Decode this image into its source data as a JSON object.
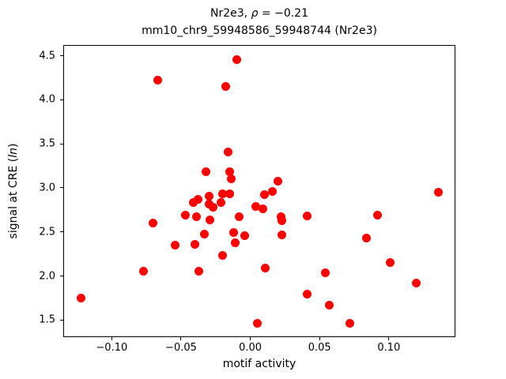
{
  "figure": {
    "background_color": "#ffffff",
    "axis_color": "#000000"
  },
  "title": {
    "line1_prefix": "Nr2e3, ",
    "line1_rho": "ρ",
    "line1_suffix": " = −0.21",
    "line2": "mm10_chr9_59948586_59948744 (Nr2e3)"
  },
  "ylabel_parts": {
    "prefix": "signal at CRE (",
    "italic": "ln",
    "suffix": ")"
  },
  "chart_data": {
    "type": "scatter",
    "title": "Nr2e3, ρ = −0.21",
    "subtitle": "mm10_chr9_59948586_59948744 (Nr2e3)",
    "xlabel": "motif activity",
    "ylabel": "signal at CRE (ln)",
    "xlim": [
      -0.135,
      0.148
    ],
    "ylim": [
      1.306,
      4.622
    ],
    "xticks": [
      -0.1,
      -0.05,
      0.0,
      0.05,
      0.1
    ],
    "xtick_labels": [
      "−0.10",
      "−0.05",
      "0.00",
      "0.05",
      "0.10"
    ],
    "yticks": [
      1.5,
      2.0,
      2.5,
      3.0,
      3.5,
      4.0,
      4.5
    ],
    "ytick_labels": [
      "1.5",
      "2.0",
      "2.5",
      "3.0",
      "3.5",
      "4.0",
      "4.5"
    ],
    "grid": false,
    "legend": null,
    "marker_color": "#ff0000",
    "marker_diameter_px": 11,
    "points": [
      [
        -0.122,
        1.75
      ],
      [
        -0.077,
        2.05
      ],
      [
        -0.07,
        2.6
      ],
      [
        -0.067,
        4.22
      ],
      [
        -0.054,
        2.35
      ],
      [
        -0.047,
        2.69
      ],
      [
        -0.041,
        2.83
      ],
      [
        -0.038,
        2.87
      ],
      [
        -0.04,
        2.36
      ],
      [
        -0.039,
        2.67
      ],
      [
        -0.037,
        2.05
      ],
      [
        -0.033,
        2.48
      ],
      [
        -0.032,
        3.18
      ],
      [
        -0.03,
        2.91
      ],
      [
        -0.03,
        2.82
      ],
      [
        -0.027,
        2.78
      ],
      [
        -0.029,
        2.64
      ],
      [
        -0.021,
        2.83
      ],
      [
        -0.02,
        2.93
      ],
      [
        -0.02,
        2.23
      ],
      [
        -0.018,
        4.15
      ],
      [
        -0.016,
        3.41
      ],
      [
        -0.015,
        3.18
      ],
      [
        -0.014,
        3.1
      ],
      [
        -0.015,
        2.93
      ],
      [
        -0.012,
        2.49
      ],
      [
        -0.011,
        2.38
      ],
      [
        -0.01,
        4.46
      ],
      [
        -0.008,
        2.67
      ],
      [
        -0.004,
        2.46
      ],
      [
        0.004,
        2.79
      ],
      [
        0.005,
        1.46
      ],
      [
        0.009,
        2.76
      ],
      [
        0.01,
        2.92
      ],
      [
        0.011,
        2.09
      ],
      [
        0.016,
        2.96
      ],
      [
        0.02,
        3.08
      ],
      [
        0.022,
        2.67
      ],
      [
        0.023,
        2.63
      ],
      [
        0.023,
        2.47
      ],
      [
        0.041,
        2.68
      ],
      [
        0.041,
        1.79
      ],
      [
        0.054,
        2.04
      ],
      [
        0.057,
        1.67
      ],
      [
        0.072,
        1.46
      ],
      [
        0.084,
        2.43
      ],
      [
        0.092,
        2.69
      ],
      [
        0.101,
        2.15
      ],
      [
        0.12,
        1.92
      ],
      [
        0.136,
        2.95
      ]
    ]
  }
}
